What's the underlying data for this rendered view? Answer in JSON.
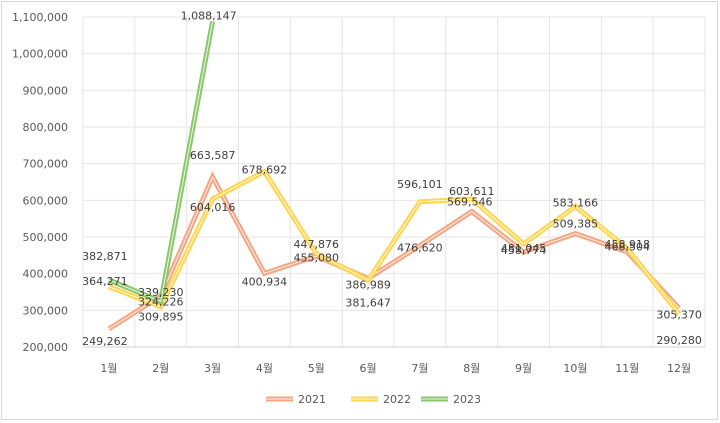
{
  "chart_data": {
    "type": "line",
    "title": "",
    "xlabel": "",
    "ylabel": "",
    "categories": [
      "1월",
      "2월",
      "3월",
      "4월",
      "5월",
      "6월",
      "7월",
      "8월",
      "9월",
      "10월",
      "11월",
      "12월"
    ],
    "ylim": [
      200000,
      1100000
    ],
    "yticks": [
      200000,
      300000,
      400000,
      500000,
      600000,
      700000,
      800000,
      900000,
      1000000,
      1100000
    ],
    "ytick_labels": [
      "200,000",
      "300,000",
      "400,000",
      "500,000",
      "600,000",
      "700,000",
      "800,000",
      "900,000",
      "1,000,000",
      "1,100,000"
    ],
    "grid": {
      "horizontal": true,
      "vertical": true
    },
    "legend_position": "bottom",
    "series": [
      {
        "name": "2021",
        "color": "#f4a582",
        "values": [
          249262,
          339230,
          663587,
          400934,
          447876,
          386989,
          476620,
          569546,
          458774,
          509385,
          458918,
          305370
        ],
        "labels": [
          "249,262",
          "339,230",
          "663,587",
          "400,934",
          "447,876",
          "386,989",
          "476,620",
          "569,546",
          "458,774",
          "509,385",
          "458,918",
          "305,370"
        ]
      },
      {
        "name": "2022",
        "color": "#ffd54f",
        "values": [
          364271,
          309895,
          604016,
          678692,
          455080,
          381647,
          596101,
          603611,
          481045,
          583166,
          468504,
          290280
        ],
        "labels": [
          "364,271",
          "309,895",
          "604,016",
          "678,692",
          "455,080",
          "381,647",
          "596,101",
          "603,611",
          "481,045",
          "583,166",
          "468,504",
          "290,280"
        ]
      },
      {
        "name": "2023",
        "color": "#8bc76a",
        "values": [
          382871,
          324226,
          1088147
        ],
        "labels": [
          "382,871",
          "324,226",
          "1,088,147"
        ]
      }
    ]
  },
  "legend": [
    {
      "label": "2021",
      "color": "#f4a582"
    },
    {
      "label": "2022",
      "color": "#ffd54f"
    },
    {
      "label": "2023",
      "color": "#8bc76a"
    }
  ]
}
